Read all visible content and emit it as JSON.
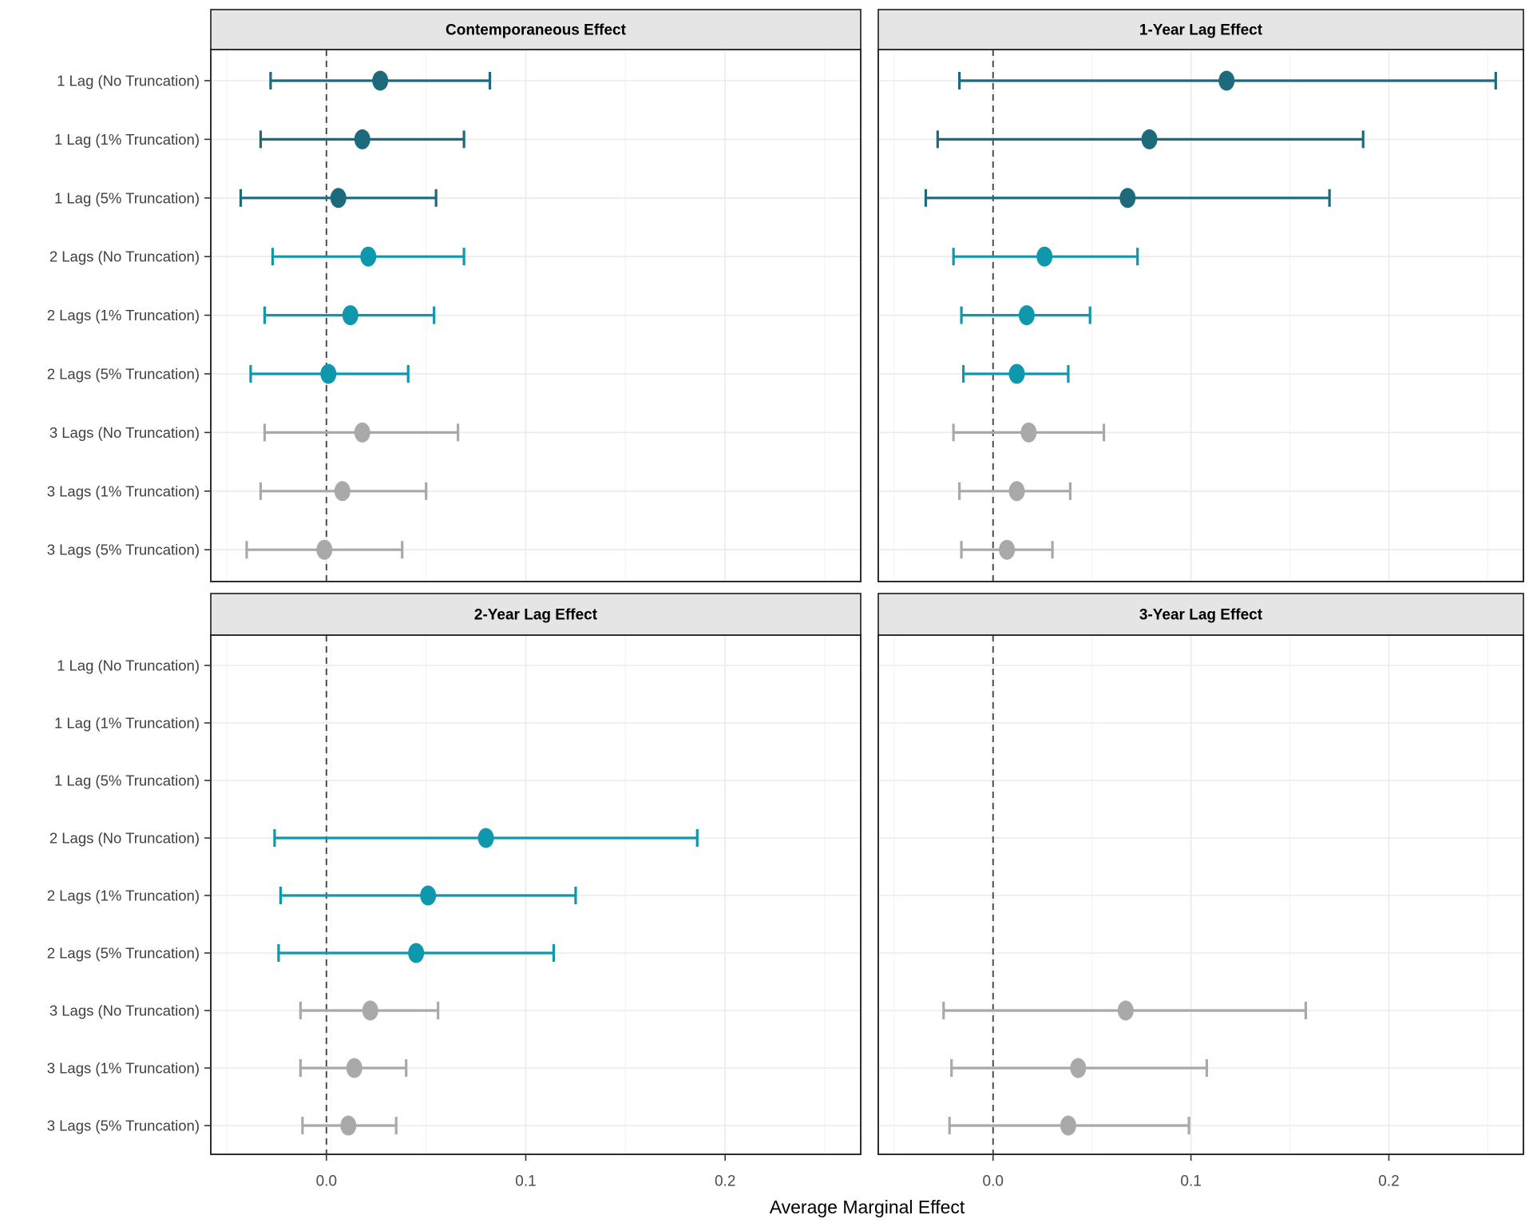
{
  "chart_data": {
    "type": "scatter",
    "subtype": "forest-pointrange",
    "xlabel": "Average Marginal Effect",
    "xlim": [
      -0.058,
      0.268
    ],
    "x_ticks": [
      0,
      0.1,
      0.2
    ],
    "x_tick_labels": [
      "0.0",
      "0.1",
      "0.2"
    ],
    "x_minor_gridlines": [
      -0.05,
      0.05,
      0.15,
      0.25
    ],
    "zero_reference_line": 0,
    "grid": true,
    "legend": "none",
    "categories": [
      "1 Lag (No Truncation)",
      "1 Lag (1% Truncation)",
      "1 Lag (5% Truncation)",
      "2 Lags (No Truncation)",
      "2 Lags (1% Truncation)",
      "2 Lags (5% Truncation)",
      "3 Lags (No Truncation)",
      "3 Lags (1% Truncation)",
      "3 Lags (5% Truncation)"
    ],
    "category_series": [
      "lag_1",
      "lag_1",
      "lag_1",
      "lag_2",
      "lag_2",
      "lag_2",
      "lag_3",
      "lag_3",
      "lag_3"
    ],
    "series_colors": {
      "lag_1": "#1d6a7d",
      "lag_2": "#0f97ad",
      "lag_3": "#a9a9a9"
    },
    "panels": [
      {
        "title": "Contemporaneous Effect",
        "estimates": [
          0.027,
          0.018,
          0.006,
          0.021,
          0.012,
          0.001,
          0.018,
          0.008,
          -0.001
        ],
        "ci_low": [
          -0.028,
          -0.033,
          -0.043,
          -0.027,
          -0.031,
          -0.038,
          -0.031,
          -0.033,
          -0.04
        ],
        "ci_high": [
          0.082,
          0.069,
          0.055,
          0.069,
          0.054,
          0.041,
          0.066,
          0.05,
          0.038
        ]
      },
      {
        "title": "1-Year Lag Effect",
        "estimates": [
          0.118,
          0.079,
          0.068,
          0.026,
          0.017,
          0.012,
          0.018,
          0.012,
          0.007
        ],
        "ci_low": [
          -0.017,
          -0.028,
          -0.034,
          -0.02,
          -0.016,
          -0.015,
          -0.02,
          -0.017,
          -0.016
        ],
        "ci_high": [
          0.254,
          0.187,
          0.17,
          0.073,
          0.049,
          0.038,
          0.056,
          0.039,
          0.03
        ]
      },
      {
        "title": "2-Year Lag Effect",
        "estimates": [
          null,
          null,
          null,
          0.08,
          0.051,
          0.045,
          0.022,
          0.014,
          0.011
        ],
        "ci_low": [
          null,
          null,
          null,
          -0.026,
          -0.023,
          -0.024,
          -0.013,
          -0.013,
          -0.012
        ],
        "ci_high": [
          null,
          null,
          null,
          0.186,
          0.125,
          0.114,
          0.056,
          0.04,
          0.035
        ]
      },
      {
        "title": "3-Year Lag Effect",
        "estimates": [
          null,
          null,
          null,
          null,
          null,
          null,
          0.067,
          0.043,
          0.038
        ],
        "ci_low": [
          null,
          null,
          null,
          null,
          null,
          null,
          -0.025,
          -0.021,
          -0.022
        ],
        "ci_high": [
          null,
          null,
          null,
          null,
          null,
          null,
          0.158,
          0.108,
          0.099
        ]
      }
    ],
    "style": {
      "strip_background": "#e5e5e5",
      "strip_border": "#1a1a1a",
      "panel_border": "#2e2e2e",
      "grid_major": "#ebebeb",
      "grid_minor": "#f4f4f4",
      "zero_line_color": "#4d4d4d",
      "axis_text_color": "#4d4d4d",
      "y_label_color": "#404040",
      "tick_color": "#333333"
    }
  }
}
